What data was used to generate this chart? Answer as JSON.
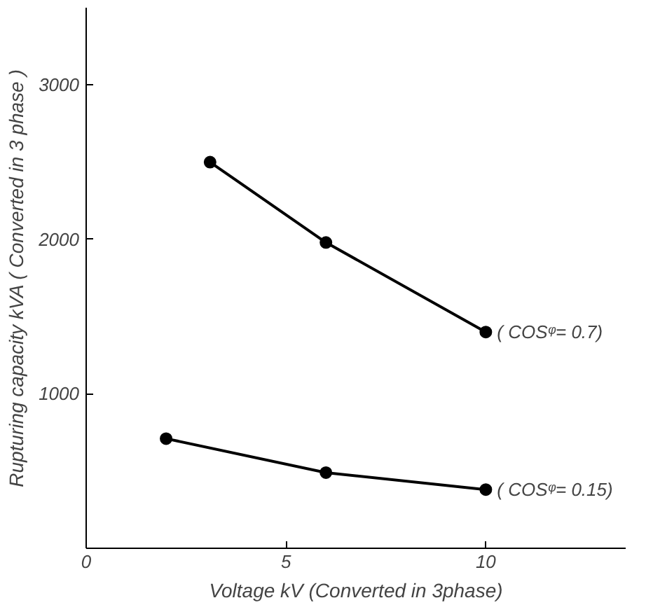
{
  "chart_data": {
    "type": "line",
    "xlabel": "Voltage kV (Converted in 3phase)",
    "ylabel": "Rupturing capacity kVA ( Converted in 3 phase )",
    "xlim": [
      0,
      13.5
    ],
    "ylim": [
      0,
      3500
    ],
    "xticks": [
      0,
      5,
      10
    ],
    "yticks": [
      1000,
      2000,
      3000
    ],
    "grid": false,
    "marker": "circle",
    "line_style": "solid",
    "series": [
      {
        "color": "#000000",
        "x": [
          3.1,
          6,
          10
        ],
        "values": [
          2500,
          1980,
          1400
        ]
      },
      {
        "color": "#000000",
        "x": [
          2,
          6,
          10
        ],
        "values": [
          710,
          490,
          380
        ]
      }
    ],
    "annotations": [
      {
        "text": "( COSᵠ= 0.7)",
        "x": 10,
        "y": 1400
      },
      {
        "text": "( COSᵠ= 0.15)",
        "x": 10,
        "y": 380
      }
    ]
  }
}
